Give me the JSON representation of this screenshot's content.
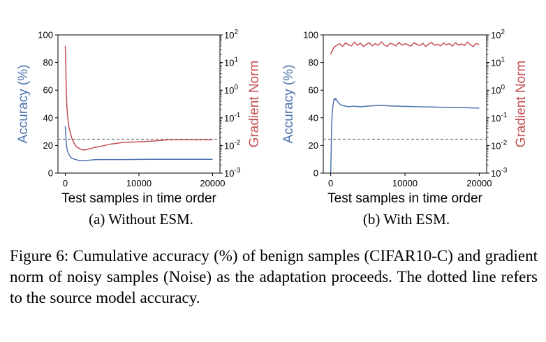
{
  "chart_data": [
    {
      "type": "line",
      "xlabel": "Test samples in time order",
      "ylabel_left": "Accuracy (%)",
      "ylabel_right": "Gradient Norm",
      "xlim": [
        -1000,
        21000
      ],
      "ylim_left": [
        0,
        100
      ],
      "ylim_right": [
        0.001,
        100
      ],
      "right_scale": "log",
      "x_ticks": [
        0,
        10000,
        20000
      ],
      "x_tick_labels": [
        "0",
        "10000",
        "20000"
      ],
      "y_left_ticks": [
        0,
        20,
        40,
        60,
        80,
        100
      ],
      "y_left_tick_labels": [
        "0",
        "20",
        "40",
        "60",
        "80",
        "100"
      ],
      "y_right_ticks": [
        0.001,
        0.01,
        0.1,
        1,
        10,
        100
      ],
      "y_right_tick_labels": [
        [
          "10",
          "-3"
        ],
        [
          "10",
          "-2"
        ],
        [
          "10",
          "-1"
        ],
        [
          "10",
          "0"
        ],
        [
          "10",
          "1"
        ],
        [
          "10",
          "2"
        ]
      ],
      "reference_line": 24.5,
      "grid": false,
      "series": [
        {
          "color": "#4c72b0",
          "axis": "left",
          "x": [
            0,
            80,
            150,
            250,
            400,
            600,
            800,
            1000,
            1300,
            1600,
            2000,
            2500,
            3000,
            3500,
            4000,
            5000,
            6000,
            8000,
            10000,
            12000,
            14000,
            16000,
            18000,
            20000
          ],
          "y": [
            34,
            26,
            20,
            17,
            14.5,
            12.5,
            11,
            10.5,
            10,
            9.5,
            9,
            9,
            9.2,
            9.5,
            9.7,
            9.8,
            9.8,
            9.8,
            9.9,
            10,
            10,
            10,
            10,
            10
          ]
        },
        {
          "color": "#c44e52",
          "axis": "right",
          "x": [
            0,
            50,
            100,
            150,
            200,
            300,
            400,
            500,
            700,
            900,
            1200,
            1500,
            2000,
            2500,
            3000,
            3500,
            4000,
            5000,
            6000,
            7000,
            8000,
            10000,
            12000,
            14000,
            16000,
            18000,
            20000
          ],
          "y": [
            40,
            12,
            2.5,
            0.7,
            0.3,
            0.12,
            0.07,
            0.045,
            0.028,
            0.018,
            0.012,
            0.009,
            0.0075,
            0.0068,
            0.0072,
            0.0078,
            0.0085,
            0.0095,
            0.011,
            0.012,
            0.013,
            0.0135,
            0.0145,
            0.016,
            0.016,
            0.016,
            0.016
          ]
        }
      ]
    },
    {
      "type": "line",
      "xlabel": "Test samples in time order",
      "ylabel_left": "Accuracy (%)",
      "ylabel_right": "Gradient Norm",
      "xlim": [
        -1000,
        21000
      ],
      "ylim_left": [
        0,
        100
      ],
      "ylim_right": [
        0.001,
        100
      ],
      "right_scale": "log",
      "x_ticks": [
        0,
        10000,
        20000
      ],
      "x_tick_labels": [
        "0",
        "10000",
        "20000"
      ],
      "y_left_ticks": [
        0,
        20,
        40,
        60,
        80,
        100
      ],
      "y_left_tick_labels": [
        "0",
        "20",
        "40",
        "60",
        "80",
        "100"
      ],
      "y_right_ticks": [
        0.001,
        0.01,
        0.1,
        1,
        10,
        100
      ],
      "y_right_tick_labels": [
        [
          "10",
          "-3"
        ],
        [
          "10",
          "-2"
        ],
        [
          "10",
          "-1"
        ],
        [
          "10",
          "0"
        ],
        [
          "10",
          "1"
        ],
        [
          "10",
          "2"
        ]
      ],
      "reference_line": 24.5,
      "grid": false,
      "series": [
        {
          "color": "#4c72b0",
          "axis": "left",
          "x": [
            0,
            60,
            120,
            200,
            300,
            400,
            500,
            600,
            700,
            800,
            900,
            1000,
            1200,
            1500,
            2000,
            2500,
            3000,
            4000,
            5000,
            6000,
            7000,
            8000,
            10000,
            12000,
            14000,
            16000,
            18000,
            20000
          ],
          "y": [
            0,
            15,
            32,
            44,
            49,
            52,
            54,
            53,
            54,
            53,
            52,
            51,
            50,
            49,
            48.5,
            48,
            48.5,
            48,
            48.5,
            48.8,
            49,
            48.6,
            48.3,
            48,
            47.8,
            47.5,
            47.3,
            47
          ]
        },
        {
          "color": "#c44e52",
          "axis": "right",
          "x": [
            0,
            400,
            800,
            1200,
            1600,
            2000,
            2400,
            2800,
            3200,
            3600,
            4000,
            4400,
            4800,
            5200,
            5600,
            6000,
            6400,
            6800,
            7200,
            7600,
            8000,
            8400,
            8800,
            9200,
            9600,
            10000,
            10400,
            10800,
            11200,
            11600,
            12000,
            12400,
            12800,
            13200,
            13600,
            14000,
            14400,
            14800,
            15200,
            15600,
            16000,
            16400,
            16800,
            17200,
            17600,
            18000,
            18400,
            18800,
            19200,
            19600,
            20000
          ],
          "y": [
            20,
            35,
            42,
            48,
            38,
            52,
            44,
            40,
            55,
            42,
            50,
            38,
            46,
            52,
            40,
            48,
            42,
            56,
            44,
            38,
            50,
            46,
            40,
            54,
            42,
            48,
            44,
            39,
            52,
            45,
            41,
            50,
            38,
            47,
            53,
            42,
            46,
            40,
            51,
            44,
            48,
            39,
            52,
            43,
            47,
            41,
            55,
            44,
            38,
            49,
            45
          ]
        }
      ]
    }
  ],
  "subcaptions": [
    "(a) Without ESM.",
    "(b) With ESM."
  ],
  "caption": "Figure 6: Cumulative accuracy (%) of benign samples (CIFAR10-C) and gradient norm of noisy samples (Noise) as the adaptation proceeds. The dotted line refers to the source model accuracy.",
  "colors": {
    "accuracy": "#4c72b0",
    "gradient": "#c44e52",
    "reference": "#777777"
  }
}
